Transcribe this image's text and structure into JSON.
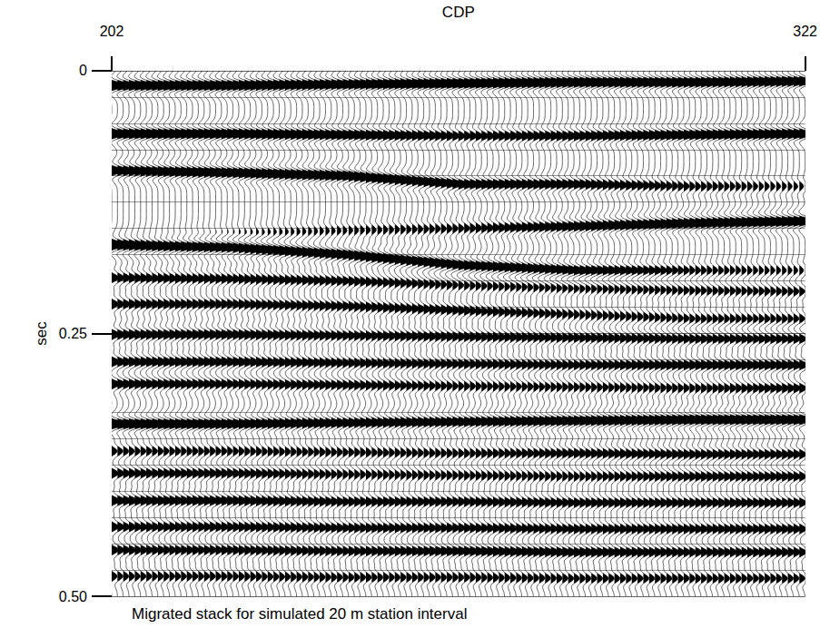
{
  "chart_data": {
    "type": "wiggle",
    "x_label": "CDP",
    "y_label": "sec",
    "caption": "Migrated stack for simulated 20 m station interval",
    "xlim": [
      202,
      322
    ],
    "xticks": [
      202,
      322
    ],
    "ylim": [
      0,
      0.5
    ],
    "yticks": [
      0,
      0.25,
      {
        "value": 0.5,
        "label": "0.50"
      }
    ],
    "grid": true,
    "color": "#000000",
    "reflectors": {
      "x": [
        202,
        222,
        242,
        262,
        282,
        302,
        322
      ],
      "events": [
        {
          "times": [
            0.014,
            0.014,
            0.013,
            0.012,
            0.011,
            0.011,
            0.01
          ],
          "amplitudes": [
            1.0,
            1.0,
            0.9,
            1.0,
            1.0,
            0.9,
            0.9
          ]
        },
        {
          "times": [
            0.06,
            0.06,
            0.061,
            0.062,
            0.062,
            0.061,
            0.06
          ],
          "amplitudes": [
            1.0,
            0.9,
            0.8,
            0.5,
            0.6,
            0.8,
            0.9
          ]
        },
        {
          "times": [
            0.095,
            0.097,
            0.1,
            0.108,
            0.108,
            0.11,
            0.11
          ],
          "amplitudes": [
            0.8,
            0.9,
            0.9,
            0.7,
            0.6,
            0.4,
            0.3
          ]
        },
        {
          "times": [
            0.16,
            0.155,
            0.152,
            0.15,
            0.148,
            0.145,
            0.143
          ],
          "amplitudes": [
            0.2,
            0.2,
            0.3,
            0.4,
            0.7,
            0.9,
            1.0
          ]
        },
        {
          "times": [
            0.166,
            0.168,
            0.175,
            0.185,
            0.19,
            0.19,
            0.19
          ],
          "amplitudes": [
            1.0,
            0.9,
            0.8,
            0.8,
            0.7,
            0.4,
            0.3
          ]
        },
        {
          "times": [
            0.197,
            0.198,
            0.2,
            0.204,
            0.207,
            0.209,
            0.21
          ],
          "amplitudes": [
            0.5,
            0.5,
            0.5,
            0.4,
            0.4,
            0.4,
            0.4
          ]
        },
        {
          "times": [
            0.222,
            0.222,
            0.224,
            0.228,
            0.232,
            0.236,
            0.236
          ],
          "amplitudes": [
            0.5,
            0.5,
            0.5,
            0.5,
            0.4,
            0.4,
            0.4
          ]
        },
        {
          "times": [
            0.251,
            0.251,
            0.252,
            0.253,
            0.254,
            0.255,
            0.255
          ],
          "amplitudes": [
            0.6,
            0.6,
            0.5,
            0.5,
            0.5,
            0.5,
            0.5
          ]
        },
        {
          "times": [
            0.277,
            0.277,
            0.278,
            0.279,
            0.28,
            0.28,
            0.28
          ],
          "amplitudes": [
            0.6,
            0.6,
            0.5,
            0.5,
            0.5,
            0.6,
            0.6
          ]
        },
        {
          "times": [
            0.298,
            0.298,
            0.299,
            0.3,
            0.301,
            0.302,
            0.302
          ],
          "amplitudes": [
            0.6,
            0.5,
            0.5,
            0.4,
            0.4,
            0.4,
            0.5
          ]
        },
        {
          "times": [
            0.336,
            0.336,
            0.335,
            0.334,
            0.333,
            0.332,
            0.332
          ],
          "amplitudes": [
            1.0,
            0.8,
            0.7,
            0.7,
            0.8,
            0.9,
            0.9
          ]
        },
        {
          "times": [
            0.362,
            0.362,
            0.363,
            0.364,
            0.364,
            0.365,
            0.365
          ],
          "amplitudes": [
            0.4,
            0.4,
            0.4,
            0.4,
            0.5,
            0.5,
            0.5
          ]
        },
        {
          "times": [
            0.383,
            0.383,
            0.384,
            0.385,
            0.386,
            0.386,
            0.386
          ],
          "amplitudes": [
            0.5,
            0.5,
            0.4,
            0.4,
            0.4,
            0.5,
            0.5
          ]
        },
        {
          "times": [
            0.409,
            0.409,
            0.41,
            0.41,
            0.411,
            0.411,
            0.411
          ],
          "amplitudes": [
            0.6,
            0.6,
            0.5,
            0.5,
            0.5,
            0.5,
            0.5
          ]
        },
        {
          "times": [
            0.434,
            0.434,
            0.435,
            0.435,
            0.436,
            0.436,
            0.436
          ],
          "amplitudes": [
            0.5,
            0.5,
            0.5,
            0.5,
            0.5,
            0.5,
            0.5
          ]
        },
        {
          "times": [
            0.456,
            0.456,
            0.457,
            0.457,
            0.458,
            0.458,
            0.458
          ],
          "amplitudes": [
            0.5,
            0.5,
            0.5,
            0.6,
            0.6,
            0.5,
            0.5
          ]
        },
        {
          "times": [
            0.481,
            0.481,
            0.482,
            0.482,
            0.483,
            0.483,
            0.483
          ],
          "amplitudes": [
            0.4,
            0.4,
            0.4,
            0.4,
            0.4,
            0.4,
            0.4
          ]
        }
      ]
    }
  }
}
